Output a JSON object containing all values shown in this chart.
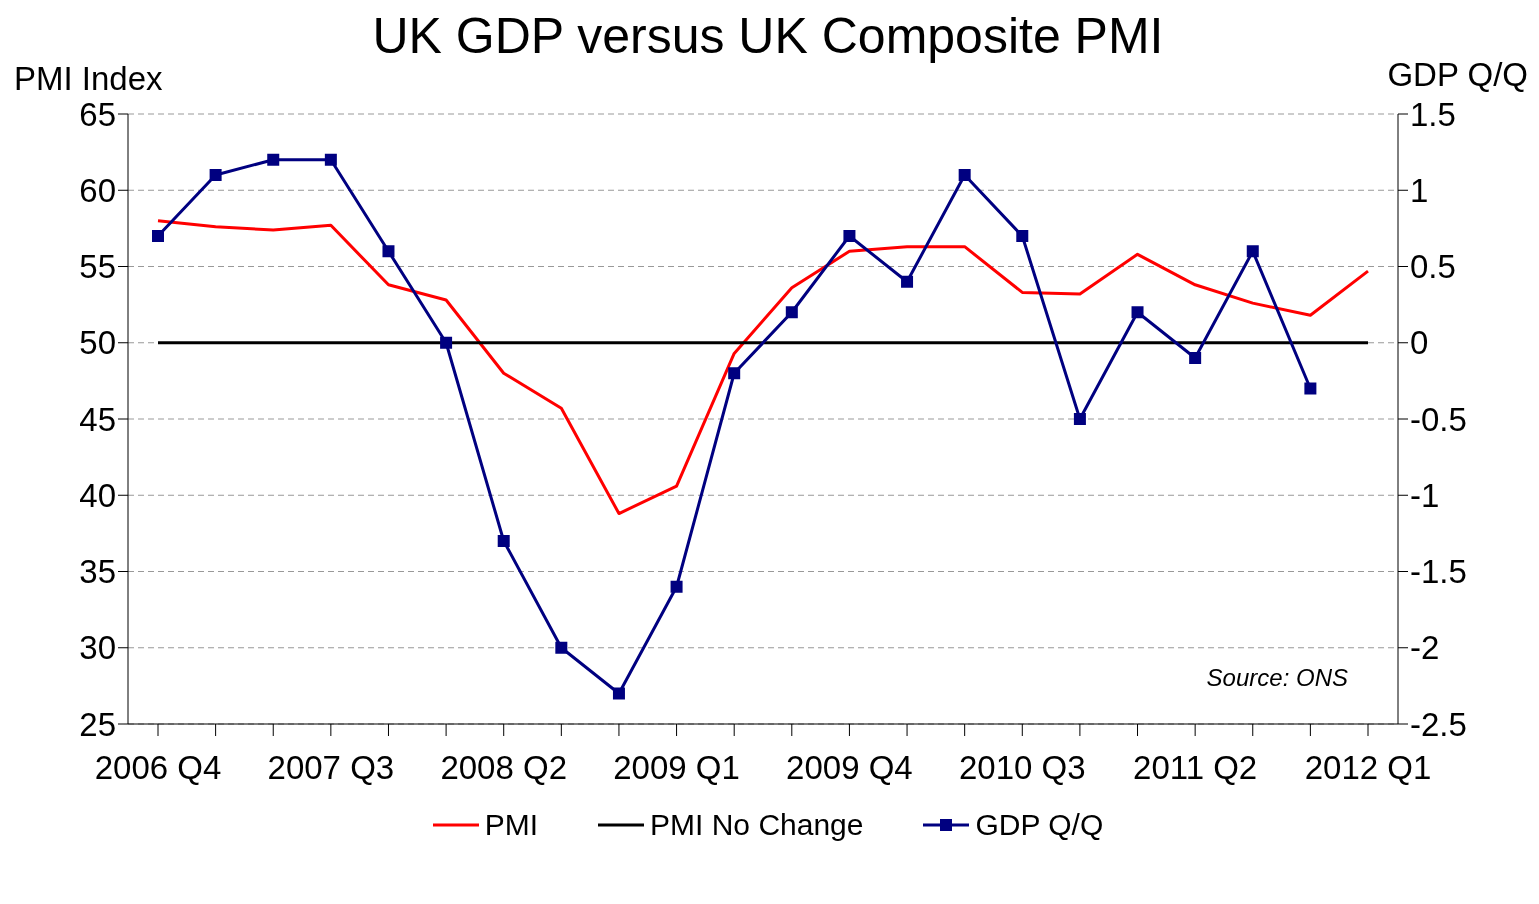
{
  "chart_data": {
    "type": "line",
    "title": "UK GDP versus UK Composite PMI",
    "ylabel": "PMI Index",
    "y2label": "GDP Q/Q",
    "annotations": [
      "Source: ONS"
    ],
    "categories": [
      "2006 Q4",
      null,
      null,
      "2007 Q3",
      null,
      null,
      "2008 Q2",
      null,
      null,
      "2009 Q1",
      null,
      null,
      "2009 Q4",
      null,
      null,
      "2010 Q3",
      null,
      null,
      "2011 Q2",
      null,
      null,
      "2012 Q1"
    ],
    "series": [
      {
        "name": "PMI",
        "color": "#ff0000",
        "marker": "none",
        "values": [
          58,
          57.6,
          57.4,
          57.7,
          53.8,
          52.8,
          48,
          45.7,
          38.8,
          40.6,
          49.3,
          53.6,
          56,
          56.3,
          56.3,
          53.3,
          53.2,
          55.8,
          53.8,
          52.6,
          51.8,
          54.7
        ]
      },
      {
        "name": "PMI No Change",
        "color": "#000000",
        "marker": "none",
        "values": [
          50,
          50,
          50,
          50,
          50,
          50,
          50,
          50,
          50,
          50,
          50,
          50,
          50,
          50,
          50,
          50,
          50,
          50,
          50,
          50,
          50,
          50
        ]
      },
      {
        "name": "GDP Q/Q",
        "color": "#000080",
        "marker": "square",
        "axis": "y2",
        "values": [
          0.7,
          1.1,
          1.2,
          1.2,
          0.6,
          0.0,
          -1.3,
          -2.0,
          -2.3,
          -1.6,
          -0.2,
          0.2,
          0.7,
          0.4,
          1.1,
          0.7,
          -0.5,
          0.2,
          -0.1,
          0.6,
          -0.3,
          null
        ]
      }
    ],
    "ylim": [
      25,
      65
    ],
    "yticks": [
      25,
      30,
      35,
      40,
      45,
      50,
      55,
      60,
      65
    ],
    "y2lim": [
      -2.5,
      1.5
    ],
    "y2ticks": [
      -2.5,
      -2,
      -1.5,
      -1,
      -0.5,
      0,
      0.5,
      1,
      1.5
    ],
    "grid": "y",
    "legend": "bottom",
    "line_style": "solid"
  }
}
